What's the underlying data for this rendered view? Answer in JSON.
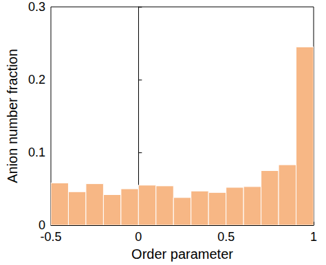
{
  "chart_data": {
    "type": "histogram",
    "xlabel": "Order parameter",
    "ylabel": "Anion number fraction",
    "bins": [
      -0.5,
      -0.4,
      -0.3,
      -0.2,
      -0.1,
      0,
      0.1,
      0.2,
      0.3,
      0.4,
      0.5,
      0.6,
      0.7,
      0.8,
      0.9,
      1.0
    ],
    "counts": [
      0.058,
      0.046,
      0.057,
      0.042,
      0.05,
      0.055,
      0.054,
      0.038,
      0.047,
      0.045,
      0.052,
      0.053,
      0.075,
      0.083,
      0.245
    ],
    "color": "#f7b785",
    "xlim": [
      -0.5,
      1
    ],
    "xticks": [
      -0.5,
      0,
      0.5,
      1
    ],
    "ylim": [
      0,
      0.3
    ],
    "yticks": [
      0,
      0.1,
      0.2,
      0.3
    ],
    "grid": false
  }
}
